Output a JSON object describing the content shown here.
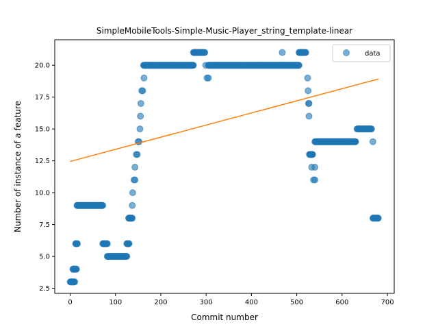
{
  "chart_data": {
    "type": "scatter",
    "title": "SimpleMobileTools-Simple-Music-Player_string_template-linear",
    "xlabel": "Commit number",
    "ylabel": "Number of instance of a feature",
    "xlim": [
      -34,
      715
    ],
    "ylim": [
      2.1,
      22.0
    ],
    "xticks": [
      0,
      100,
      200,
      300,
      400,
      500,
      600,
      700
    ],
    "yticks": [
      2.5,
      5.0,
      7.5,
      10.0,
      12.5,
      15.0,
      17.5,
      20.0
    ],
    "ytick_labels": [
      "2.5",
      "5.0",
      "7.5",
      "10.0",
      "12.5",
      "15.0",
      "17.5",
      "20.0"
    ],
    "grid": false,
    "legend_position": "top-right",
    "colors": {
      "data": "#1f77b4",
      "fit": "#ff7f0e"
    },
    "series": [
      {
        "name": "data",
        "kind": "scatter",
        "segments": [
          {
            "x": [
              0,
              10
            ],
            "y": 3
          },
          {
            "x": [
              6,
              14
            ],
            "y": 4
          },
          {
            "x": [
              12,
              16
            ],
            "y": 6
          },
          {
            "x": [
              15,
              72
            ],
            "y": 9
          },
          {
            "x": [
              72,
              82
            ],
            "y": 6
          },
          {
            "x": [
              82,
              125
            ],
            "y": 5
          },
          {
            "x": [
              125,
              130
            ],
            "y": 6
          },
          {
            "x": [
              129,
              137
            ],
            "y": 8
          }
        ],
        "points": [
          [
            137,
            9
          ],
          [
            138,
            10
          ],
          [
            141,
            11
          ],
          [
            143,
            11
          ],
          [
            143,
            12
          ],
          [
            146,
            13
          ],
          [
            148,
            13
          ],
          [
            150,
            14
          ],
          [
            152,
            14
          ],
          [
            154,
            15
          ],
          [
            155,
            16
          ],
          [
            156,
            17
          ],
          [
            158,
            18
          ],
          [
            160,
            18
          ],
          [
            163,
            19
          ],
          [
            299,
            20
          ],
          [
            302,
            19
          ],
          [
            305,
            19
          ],
          [
            468,
            21
          ],
          [
            507,
            21
          ],
          [
            510,
            21
          ],
          [
            524,
            19
          ],
          [
            525,
            18
          ],
          [
            526,
            17
          ],
          [
            527,
            17
          ],
          [
            527,
            16
          ],
          [
            530,
            13
          ],
          [
            533,
            12
          ],
          [
            537,
            11
          ],
          [
            540,
            11
          ],
          [
            540,
            12
          ],
          [
            668,
            14
          ]
        ],
        "segments_after": [
          {
            "x": [
              162,
              272
            ],
            "y": 20
          },
          {
            "x": [
              272,
              297
            ],
            "y": 21
          },
          {
            "x": [
              305,
              465
            ],
            "y": 20
          },
          {
            "x": [
              465,
              505
            ],
            "y": 20
          },
          {
            "x": [
              505,
              520
            ],
            "y": 21
          },
          {
            "x": [
              528,
              535
            ],
            "y": 13
          },
          {
            "x": [
              540,
              630
            ],
            "y": 14
          },
          {
            "x": [
              633,
              665
            ],
            "y": 15
          },
          {
            "x": [
              668,
              680
            ],
            "y": 8
          }
        ]
      },
      {
        "name": "",
        "kind": "line",
        "x": [
          0,
          680
        ],
        "y": [
          12.45,
          18.92
        ]
      }
    ],
    "legend": [
      {
        "label": "data",
        "marker": "circle"
      }
    ]
  }
}
